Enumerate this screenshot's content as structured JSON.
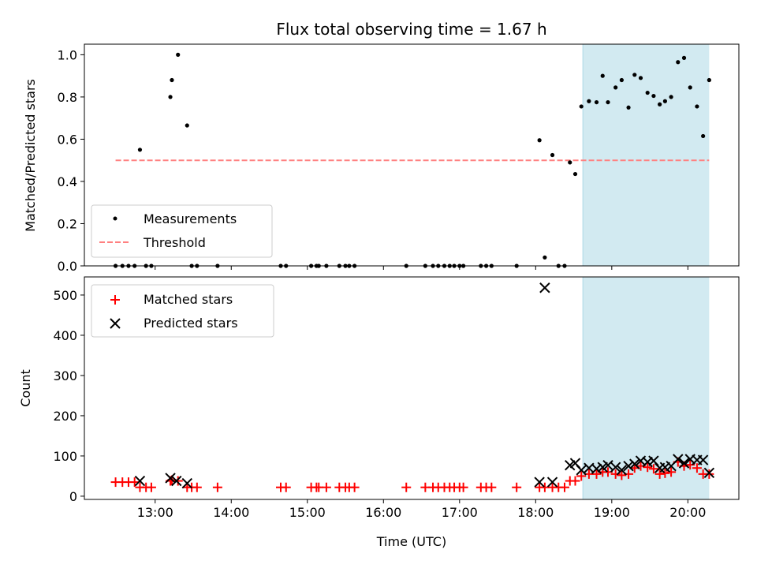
{
  "chart_data": {
    "title": "Flux total observing time = 1.67 h",
    "xlabel": "Time (UTC)",
    "x_range_hours": [
      12.07,
      20.67
    ],
    "x_ticks": [
      {
        "h": 13,
        "label": "13:00"
      },
      {
        "h": 14,
        "label": "14:00"
      },
      {
        "h": 15,
        "label": "15:00"
      },
      {
        "h": 16,
        "label": "16:00"
      },
      {
        "h": 17,
        "label": "17:00"
      },
      {
        "h": 18,
        "label": "18:00"
      },
      {
        "h": 19,
        "label": "19:00"
      },
      {
        "h": 20,
        "label": "20:00"
      }
    ],
    "shaded_interval_hours": [
      18.62,
      20.28
    ],
    "shade_color": "#add8e6",
    "panels": [
      {
        "type": "scatter",
        "ylabel": "Matched/Predicted stars",
        "ylim": [
          0,
          1.05
        ],
        "yticks": [
          0.0,
          0.2,
          0.4,
          0.6,
          0.8,
          1.0
        ],
        "ytick_labels": [
          "0.0",
          "0.2",
          "0.4",
          "0.6",
          "0.8",
          "1.0"
        ],
        "legend": {
          "position": "lower-left",
          "entries": [
            "Measurements",
            "Threshold"
          ]
        },
        "threshold": {
          "name": "Threshold",
          "y": 0.5,
          "x": [
            12.48,
            20.28
          ],
          "color": "#ff8080"
        },
        "measurements": {
          "name": "Measurements",
          "color": "#000000",
          "points": [
            [
              12.48,
              0
            ],
            [
              12.57,
              0
            ],
            [
              12.65,
              0
            ],
            [
              12.73,
              0
            ],
            [
              12.8,
              0.55
            ],
            [
              12.88,
              0
            ],
            [
              12.95,
              0
            ],
            [
              13.2,
              0.8
            ],
            [
              13.22,
              0.88
            ],
            [
              13.3,
              1.0
            ],
            [
              13.42,
              0.665
            ],
            [
              13.48,
              0
            ],
            [
              13.55,
              0
            ],
            [
              13.82,
              0
            ],
            [
              14.65,
              0
            ],
            [
              14.72,
              0
            ],
            [
              15.05,
              0
            ],
            [
              15.12,
              0
            ],
            [
              15.15,
              0
            ],
            [
              15.25,
              0
            ],
            [
              15.42,
              0
            ],
            [
              15.5,
              0
            ],
            [
              15.55,
              0
            ],
            [
              15.62,
              0
            ],
            [
              16.3,
              0
            ],
            [
              16.55,
              0
            ],
            [
              16.65,
              0
            ],
            [
              16.72,
              0
            ],
            [
              16.8,
              0
            ],
            [
              16.87,
              0
            ],
            [
              16.93,
              0
            ],
            [
              17.0,
              0
            ],
            [
              17.05,
              0
            ],
            [
              17.28,
              0
            ],
            [
              17.35,
              0
            ],
            [
              17.42,
              0
            ],
            [
              17.75,
              0
            ],
            [
              18.05,
              0.595
            ],
            [
              18.12,
              0.04
            ],
            [
              18.22,
              0.525
            ],
            [
              18.3,
              0
            ],
            [
              18.38,
              0
            ],
            [
              18.45,
              0.49
            ],
            [
              18.52,
              0.435
            ],
            [
              18.6,
              0.755
            ],
            [
              18.7,
              0.78
            ],
            [
              18.8,
              0.775
            ],
            [
              18.88,
              0.9
            ],
            [
              18.95,
              0.775
            ],
            [
              19.05,
              0.845
            ],
            [
              19.13,
              0.88
            ],
            [
              19.22,
              0.75
            ],
            [
              19.3,
              0.905
            ],
            [
              19.38,
              0.89
            ],
            [
              19.47,
              0.82
            ],
            [
              19.55,
              0.805
            ],
            [
              19.63,
              0.765
            ],
            [
              19.7,
              0.78
            ],
            [
              19.78,
              0.8
            ],
            [
              19.87,
              0.965
            ],
            [
              19.95,
              0.985
            ],
            [
              20.03,
              0.845
            ],
            [
              20.12,
              0.755
            ],
            [
              20.2,
              0.615
            ],
            [
              20.28,
              0.88
            ]
          ]
        }
      },
      {
        "type": "scatter",
        "ylabel": "Count",
        "ylim": [
          -8,
          545
        ],
        "yticks": [
          0,
          100,
          200,
          300,
          400,
          500
        ],
        "ytick_labels": [
          "0",
          "100",
          "200",
          "300",
          "400",
          "500"
        ],
        "legend": {
          "position": "upper-left",
          "entries": [
            "Matched stars",
            "Predicted stars"
          ]
        },
        "series": [
          {
            "name": "Matched stars",
            "marker": "plus",
            "color": "#ff0000",
            "points": [
              [
                12.48,
                35
              ],
              [
                12.57,
                35
              ],
              [
                12.65,
                35
              ],
              [
                12.73,
                35
              ],
              [
                12.8,
                22
              ],
              [
                12.88,
                22
              ],
              [
                12.95,
                22
              ],
              [
                13.2,
                38
              ],
              [
                13.22,
                40
              ],
              [
                13.3,
                38
              ],
              [
                13.42,
                22
              ],
              [
                13.48,
                22
              ],
              [
                13.55,
                22
              ],
              [
                13.82,
                22
              ],
              [
                14.65,
                22
              ],
              [
                14.72,
                22
              ],
              [
                15.05,
                22
              ],
              [
                15.12,
                22
              ],
              [
                15.15,
                22
              ],
              [
                15.25,
                22
              ],
              [
                15.42,
                22
              ],
              [
                15.5,
                22
              ],
              [
                15.55,
                22
              ],
              [
                15.62,
                22
              ],
              [
                16.3,
                22
              ],
              [
                16.55,
                22
              ],
              [
                16.65,
                22
              ],
              [
                16.72,
                22
              ],
              [
                16.8,
                22
              ],
              [
                16.87,
                22
              ],
              [
                16.93,
                22
              ],
              [
                17.0,
                22
              ],
              [
                17.05,
                22
              ],
              [
                17.28,
                22
              ],
              [
                17.35,
                22
              ],
              [
                17.42,
                22
              ],
              [
                17.75,
                22
              ],
              [
                18.05,
                22
              ],
              [
                18.12,
                22
              ],
              [
                18.22,
                22
              ],
              [
                18.3,
                22
              ],
              [
                18.38,
                22
              ],
              [
                18.45,
                38
              ],
              [
                18.52,
                38
              ],
              [
                18.6,
                50
              ],
              [
                18.7,
                55
              ],
              [
                18.8,
                55
              ],
              [
                18.88,
                60
              ],
              [
                18.95,
                60
              ],
              [
                19.05,
                55
              ],
              [
                19.13,
                52
              ],
              [
                19.22,
                55
              ],
              [
                19.3,
                70
              ],
              [
                19.38,
                75
              ],
              [
                19.47,
                72
              ],
              [
                19.55,
                68
              ],
              [
                19.63,
                55
              ],
              [
                19.7,
                57
              ],
              [
                19.78,
                60
              ],
              [
                19.87,
                85
              ],
              [
                19.95,
                75
              ],
              [
                20.03,
                78
              ],
              [
                20.12,
                70
              ],
              [
                20.2,
                55
              ],
              [
                20.28,
                55
              ]
            ]
          },
          {
            "name": "Predicted stars",
            "marker": "x",
            "color": "#000000",
            "points": [
              [
                12.8,
                38
              ],
              [
                13.2,
                45
              ],
              [
                13.28,
                38
              ],
              [
                13.42,
                32
              ],
              [
                18.05,
                35
              ],
              [
                18.12,
                518
              ],
              [
                18.22,
                35
              ],
              [
                18.45,
                77
              ],
              [
                18.52,
                82
              ],
              [
                18.6,
                65
              ],
              [
                18.7,
                70
              ],
              [
                18.8,
                68
              ],
              [
                18.88,
                72
              ],
              [
                18.95,
                77
              ],
              [
                19.05,
                72
              ],
              [
                19.13,
                65
              ],
              [
                19.22,
                75
              ],
              [
                19.3,
                80
              ],
              [
                19.38,
                88
              ],
              [
                19.47,
                85
              ],
              [
                19.55,
                88
              ],
              [
                19.63,
                70
              ],
              [
                19.7,
                72
              ],
              [
                19.78,
                75
              ],
              [
                19.87,
                92
              ],
              [
                19.95,
                82
              ],
              [
                20.03,
                92
              ],
              [
                20.12,
                90
              ],
              [
                20.2,
                90
              ],
              [
                20.28,
                58
              ]
            ]
          }
        ]
      }
    ]
  }
}
